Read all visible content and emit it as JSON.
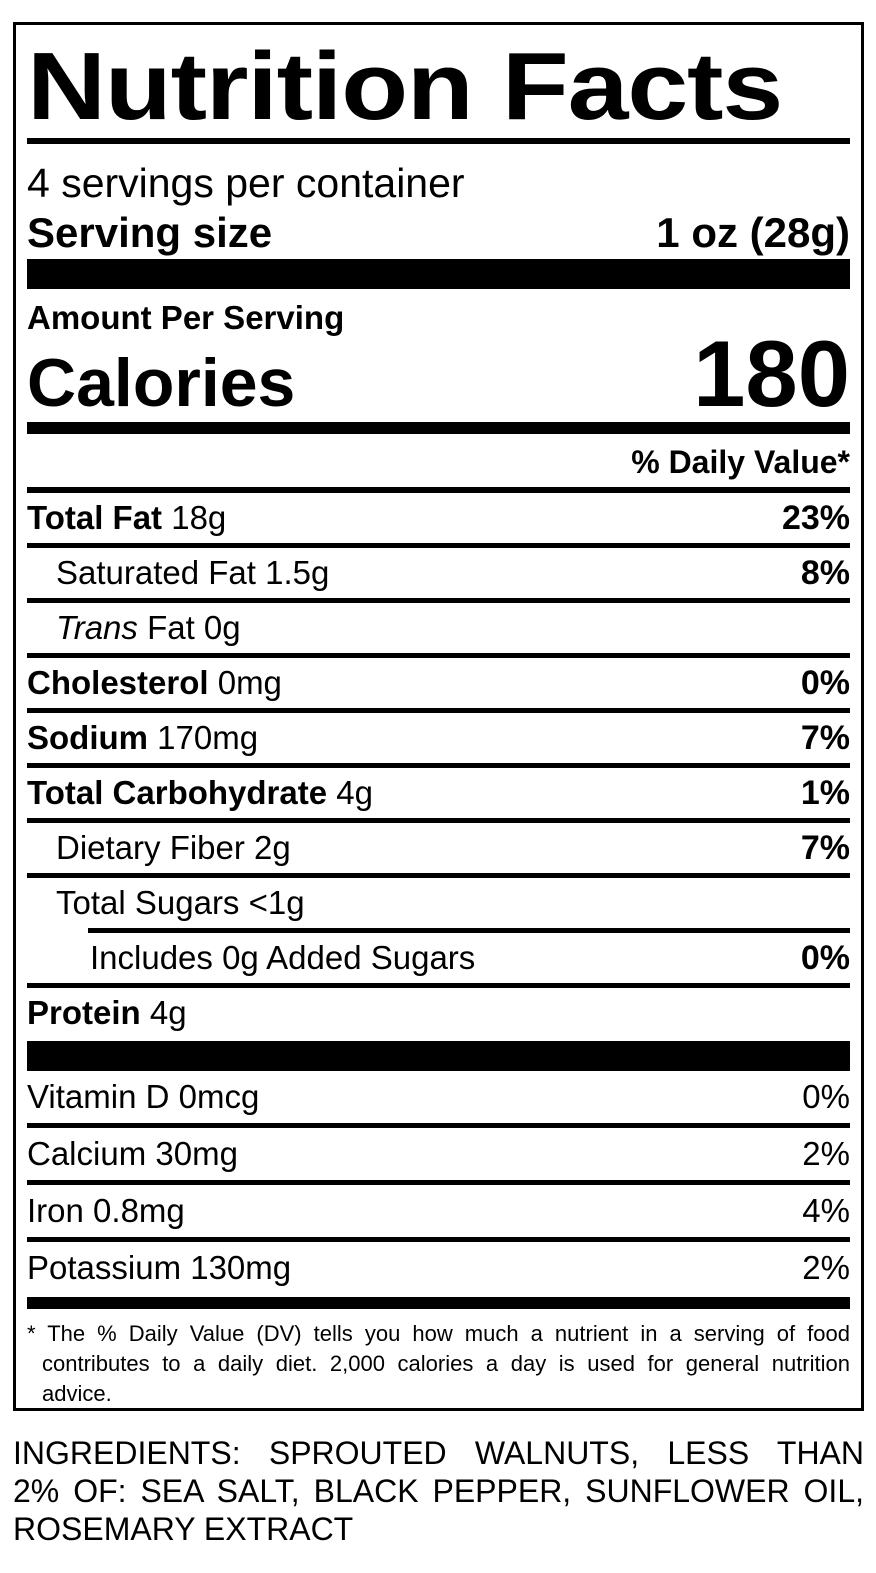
{
  "colors": {
    "ink": "#000000",
    "paper": "#ffffff"
  },
  "label": {
    "title": "Nutrition Facts",
    "servings_per_container": "4 servings per container",
    "serving_size_label": "Serving size",
    "serving_size_value": "1 oz (28g)",
    "amount_per_serving": "Amount Per Serving",
    "calories_label": "Calories",
    "calories_value": "180",
    "daily_value_header": "% Daily Value*",
    "nutrients": [
      {
        "lead": "Total Fat",
        "lead_style": "bold",
        "text": "18g",
        "dv": "23%",
        "dv_bold": true,
        "indent": 0,
        "sep": "none"
      },
      {
        "lead": "Saturated Fat",
        "lead_style": "regular",
        "text": "1.5g",
        "dv": "8%",
        "dv_bold": true,
        "indent": 1,
        "sep": "full"
      },
      {
        "lead": "Trans",
        "lead_style": "italic",
        "text": "Fat 0g",
        "dv": "",
        "dv_bold": false,
        "indent": 1,
        "sep": "full"
      },
      {
        "lead": "Cholesterol",
        "lead_style": "bold",
        "text": "0mg",
        "dv": "0%",
        "dv_bold": true,
        "indent": 0,
        "sep": "full"
      },
      {
        "lead": "Sodium",
        "lead_style": "bold",
        "text": "170mg",
        "dv": "7%",
        "dv_bold": true,
        "indent": 0,
        "sep": "full"
      },
      {
        "lead": "Total Carbohydrate",
        "lead_style": "bold",
        "text": "4g",
        "dv": "1%",
        "dv_bold": true,
        "indent": 0,
        "sep": "full"
      },
      {
        "lead": "Dietary Fiber",
        "lead_style": "regular",
        "text": "2g",
        "dv": "7%",
        "dv_bold": true,
        "indent": 1,
        "sep": "full"
      },
      {
        "lead": "Total Sugars",
        "lead_style": "regular",
        "text": "<1g",
        "dv": "",
        "dv_bold": false,
        "indent": 1,
        "sep": "full"
      },
      {
        "lead": "Includes 0g Added Sugars",
        "lead_style": "regular",
        "text": "",
        "dv": "0%",
        "dv_bold": true,
        "indent": 2,
        "sep": "indent"
      },
      {
        "lead": "Protein",
        "lead_style": "bold",
        "text": "4g",
        "dv": "",
        "dv_bold": false,
        "indent": 0,
        "sep": "full"
      }
    ],
    "vitamins": [
      {
        "lead": "Vitamin D",
        "lead_style": "regular",
        "text": "0mcg",
        "dv": "0%",
        "dv_bold": false,
        "indent": 0,
        "sep": "none"
      },
      {
        "lead": "Calcium",
        "lead_style": "regular",
        "text": "30mg",
        "dv": "2%",
        "dv_bold": false,
        "indent": 0,
        "sep": "full"
      },
      {
        "lead": "Iron",
        "lead_style": "regular",
        "text": "0.8mg",
        "dv": "4%",
        "dv_bold": false,
        "indent": 0,
        "sep": "full"
      },
      {
        "lead": "Potassium",
        "lead_style": "regular",
        "text": "130mg",
        "dv": "2%",
        "dv_bold": false,
        "indent": 0,
        "sep": "full"
      }
    ],
    "footnote_lines": [
      "* The % Daily Value (DV) tells you how much a nutrient in a serving of food",
      "contributes to a daily diet. 2,000 calories a day is used for general nutrition",
      "advice."
    ]
  },
  "ingredients": {
    "lines": [
      "INGREDIENTS: SPROUTED WALNUTS, LESS THAN",
      "2% OF: SEA SALT, BLACK PEPPER, SUNFLOWER OIL,",
      "ROSEMARY EXTRACT"
    ]
  }
}
